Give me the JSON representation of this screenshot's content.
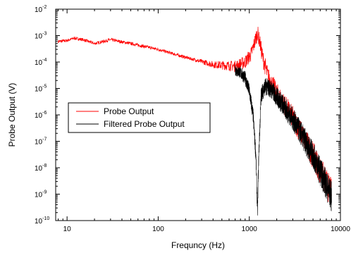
{
  "chart_data": {
    "type": "line",
    "title": "",
    "xlabel": "Frequncy (Hz)",
    "ylabel": "Probe Output (V)",
    "x_scale": "log",
    "y_scale": "log",
    "xlim": [
      7.5,
      10000
    ],
    "ylim": [
      1e-10,
      0.01
    ],
    "x_ticks": [
      {
        "value": 10,
        "label": "10"
      },
      {
        "value": 100,
        "label": "100"
      },
      {
        "value": 1000,
        "label": "1000"
      },
      {
        "value": 10000,
        "label": "10000"
      }
    ],
    "y_ticks": [
      {
        "value": 1e-10,
        "base": "10",
        "exp": "-10"
      },
      {
        "value": 1e-09,
        "base": "10",
        "exp": "-9"
      },
      {
        "value": 1e-08,
        "base": "10",
        "exp": "-8"
      },
      {
        "value": 1e-07,
        "base": "10",
        "exp": "-7"
      },
      {
        "value": 1e-06,
        "base": "10",
        "exp": "-6"
      },
      {
        "value": 1e-05,
        "base": "10",
        "exp": "-5"
      },
      {
        "value": 0.0001,
        "base": "10",
        "exp": "-4"
      },
      {
        "value": 0.001,
        "base": "10",
        "exp": "-3"
      },
      {
        "value": 0.01,
        "base": "10",
        "exp": "-2"
      }
    ],
    "grid": false,
    "legend_position": "center-left",
    "series": [
      {
        "name": "Probe Output",
        "color": "#ff0000",
        "x": [
          8,
          10,
          12,
          15,
          20,
          30,
          50,
          100,
          200,
          400,
          700,
          900,
          1050,
          1150,
          1230,
          1300,
          1400,
          1600,
          2000,
          3000,
          5000,
          8000
        ],
        "y": [
          0.0006,
          0.00065,
          0.0008,
          0.0007,
          0.0005,
          0.0007,
          0.0005,
          0.0003,
          0.00015,
          8e-05,
          7e-05,
          0.0001,
          0.0002,
          0.0006,
          0.0013,
          0.0006,
          0.00015,
          3e-05,
          7e-06,
          8e-07,
          3e-08,
          1e-09
        ]
      },
      {
        "name": "Filtered Probe Output",
        "color": "#000000",
        "x": [
          700,
          800,
          900,
          1000,
          1100,
          1180,
          1230,
          1270,
          1350,
          1500,
          1700,
          2000,
          3000,
          5000,
          8000
        ],
        "y": [
          5e-05,
          4e-05,
          2.5e-05,
          8e-06,
          1e-06,
          3e-08,
          2e-10,
          3e-08,
          6e-06,
          1.2e-05,
          1e-05,
          5e-06,
          7e-07,
          3e-08,
          8e-10
        ]
      }
    ]
  }
}
